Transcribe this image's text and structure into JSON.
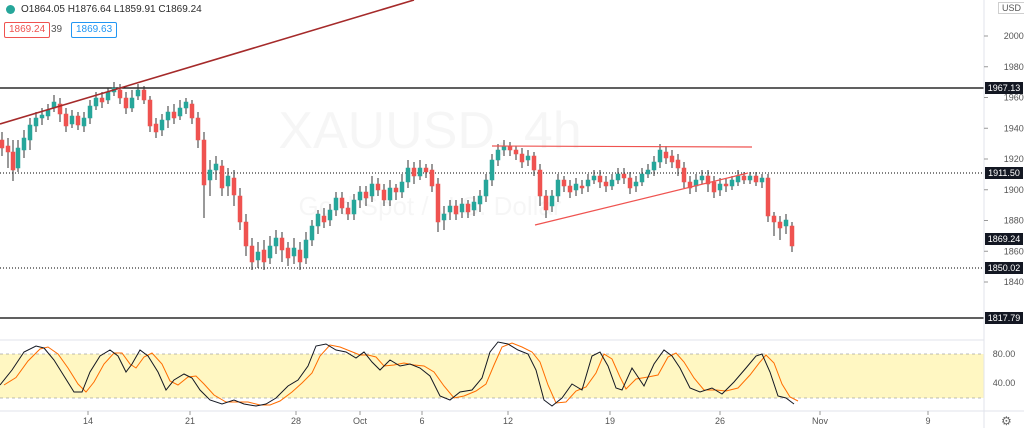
{
  "header": {
    "ohlc_text": "O1864.05  H1876.64  L1859.91  C1869.24",
    "sell_price": "1869.24",
    "spread": "39",
    "buy_price": "1869.63",
    "currency_button": "USD",
    "status_color": "#26a69a"
  },
  "watermark": {
    "symbol": "XAUUSD, 4h",
    "sub": "Gold Spot / U.S. Dollar"
  },
  "chart_data": {
    "type": "candlestick",
    "y_ticks": [
      "2000.00",
      "1980.00",
      "1960.00",
      "1940.00",
      "1920.00",
      "1900.00",
      "1880.00",
      "1860.00",
      "1840.00"
    ],
    "price_labels": [
      {
        "text": "1967.13",
        "style": "black"
      },
      {
        "text": "1911.50",
        "style": "black"
      },
      {
        "text": "1869.24",
        "style": "black"
      },
      {
        "text": "1850.02",
        "style": "black"
      },
      {
        "text": "1817.79",
        "style": "black"
      }
    ],
    "x_ticks": [
      "14",
      "21",
      "28",
      "Oct",
      "6",
      "12",
      "19",
      "26",
      "Nov",
      "9"
    ],
    "stoch_ticks": [
      "80.00",
      "40.00"
    ],
    "colors": {
      "up": "#26a69a",
      "down": "#ef5350",
      "upWick": "#333333",
      "downWick": "#333333",
      "trend_red": "#a52a2a",
      "line_red": "#ef5350",
      "stoch_k": "#131722",
      "stoch_d": "#ff6d00",
      "band": "#fff7c2"
    }
  },
  "icons": {
    "settings": "gear-icon"
  }
}
